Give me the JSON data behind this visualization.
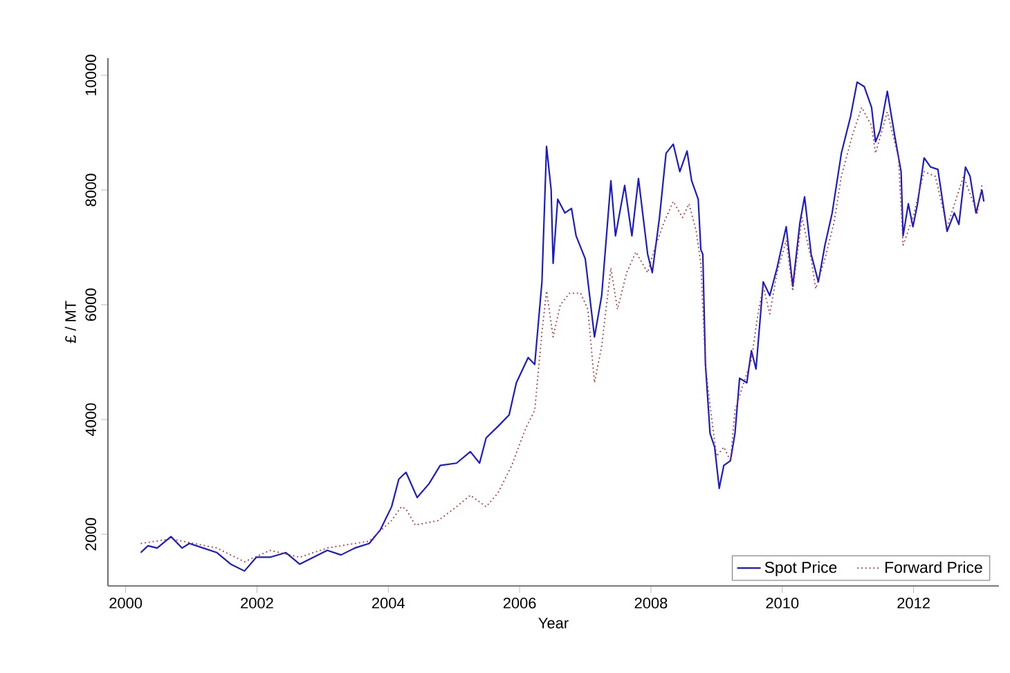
{
  "chart_data": {
    "type": "line",
    "xlabel": "Year",
    "ylabel": "£ / MT",
    "xlim": [
      1999.73,
      2013.3
    ],
    "ylim": [
      1100,
      10300
    ],
    "xticks": [
      2000,
      2002,
      2004,
      2006,
      2008,
      2010,
      2012
    ],
    "yticks": [
      2000,
      4000,
      6000,
      8000,
      10000
    ],
    "grid": false,
    "legend": "bottom right",
    "marker": "none",
    "series": [
      {
        "name": "Spot Price",
        "color": "#1a1acc",
        "line_style": "solid",
        "x": [
          2000.23,
          2000.34,
          2000.48,
          2000.69,
          2000.86,
          2000.97,
          2001.18,
          2001.39,
          2001.6,
          2001.81,
          2001.99,
          2002.2,
          2002.44,
          2002.65,
          2002.86,
          2003.07,
          2003.28,
          2003.49,
          2003.71,
          2003.88,
          2004.05,
          2004.16,
          2004.27,
          2004.44,
          2004.62,
          2004.79,
          2005.04,
          2005.25,
          2005.39,
          2005.49,
          2005.67,
          2005.84,
          2005.95,
          2006.13,
          2006.23,
          2006.34,
          2006.41,
          2006.48,
          2006.51,
          2006.58,
          2006.69,
          2006.79,
          2006.86,
          2007.0,
          2007.14,
          2007.25,
          2007.39,
          2007.46,
          2007.6,
          2007.71,
          2007.81,
          2007.95,
          2008.02,
          2008.13,
          2008.23,
          2008.34,
          2008.44,
          2008.55,
          2008.62,
          2008.72,
          2008.76,
          2008.79,
          2008.83,
          2008.9,
          2008.97,
          2009.04,
          2009.11,
          2009.21,
          2009.28,
          2009.35,
          2009.46,
          2009.53,
          2009.6,
          2009.71,
          2009.81,
          2009.92,
          2010.06,
          2010.16,
          2010.27,
          2010.34,
          2010.44,
          2010.55,
          2010.65,
          2010.76,
          2010.9,
          2011.04,
          2011.14,
          2011.25,
          2011.36,
          2011.42,
          2011.49,
          2011.6,
          2011.71,
          2011.81,
          2011.84,
          2011.92,
          2011.99,
          2012.06,
          2012.16,
          2012.26,
          2012.37,
          2012.51,
          2012.62,
          2012.69,
          2012.79,
          2012.86,
          2012.95,
          2013.04,
          2013.07
        ],
        "values": [
          1680,
          1800,
          1760,
          1960,
          1760,
          1840,
          1760,
          1680,
          1480,
          1360,
          1600,
          1600,
          1680,
          1480,
          1600,
          1720,
          1640,
          1760,
          1840,
          2080,
          2480,
          2960,
          3080,
          2640,
          2880,
          3200,
          3240,
          3440,
          3240,
          3680,
          3880,
          4080,
          4640,
          5080,
          4960,
          6400,
          8760,
          8000,
          6720,
          7840,
          7600,
          7680,
          7200,
          6800,
          5440,
          6160,
          8160,
          7200,
          8080,
          7200,
          8200,
          6880,
          6560,
          7520,
          8640,
          8800,
          8320,
          8680,
          8160,
          7840,
          6960,
          6880,
          4960,
          3760,
          3520,
          2800,
          3200,
          3280,
          3760,
          4720,
          4640,
          5200,
          4880,
          6400,
          6160,
          6640,
          7360,
          6320,
          7440,
          7880,
          6880,
          6400,
          7040,
          7600,
          8640,
          9280,
          9880,
          9800,
          9440,
          8840,
          9040,
          9720,
          8960,
          8320,
          7200,
          7760,
          7360,
          7760,
          8560,
          8400,
          8360,
          7280,
          7600,
          7400,
          8400,
          8240,
          7600,
          8000,
          7800
        ]
      },
      {
        "name": "Forward Price",
        "color": "#b03030",
        "line_style": "dotted",
        "x": [
          2000.23,
          2000.69,
          2001.39,
          2001.81,
          2002.2,
          2002.65,
          2003.07,
          2003.71,
          2004.05,
          2004.2,
          2004.27,
          2004.41,
          2004.76,
          2005.04,
          2005.25,
          2005.49,
          2005.67,
          2005.88,
          2006.09,
          2006.23,
          2006.34,
          2006.41,
          2006.51,
          2006.62,
          2006.76,
          2006.93,
          2007.04,
          2007.14,
          2007.25,
          2007.39,
          2007.49,
          2007.63,
          2007.77,
          2007.95,
          2008.05,
          2008.2,
          2008.34,
          2008.48,
          2008.58,
          2008.69,
          2008.76,
          2008.83,
          2008.9,
          2009.0,
          2009.11,
          2009.21,
          2009.28,
          2009.39,
          2009.53,
          2009.63,
          2009.71,
          2009.81,
          2009.92,
          2010.06,
          2010.16,
          2010.3,
          2010.44,
          2010.51,
          2010.65,
          2010.79,
          2010.9,
          2011.07,
          2011.21,
          2011.36,
          2011.42,
          2011.6,
          2011.77,
          2011.84,
          2011.99,
          2012.16,
          2012.33,
          2012.51,
          2012.76,
          2012.97,
          2013.04
        ],
        "values": [
          1840,
          1920,
          1760,
          1520,
          1720,
          1600,
          1760,
          1880,
          2240,
          2480,
          2440,
          2160,
          2240,
          2480,
          2680,
          2480,
          2720,
          3200,
          3840,
          4160,
          5520,
          6240,
          5440,
          6000,
          6200,
          6200,
          5920,
          4640,
          5280,
          6640,
          5920,
          6560,
          6920,
          6560,
          6960,
          7440,
          7800,
          7520,
          7760,
          7280,
          6720,
          4960,
          4240,
          3360,
          3520,
          3280,
          4160,
          4560,
          5040,
          5840,
          6320,
          5840,
          6560,
          7120,
          6240,
          7520,
          6800,
          6280,
          6800,
          7440,
          8240,
          8960,
          9440,
          9120,
          8640,
          9360,
          8560,
          7040,
          7520,
          8320,
          8240,
          7360,
          8240,
          7600,
          8080
        ]
      }
    ]
  }
}
